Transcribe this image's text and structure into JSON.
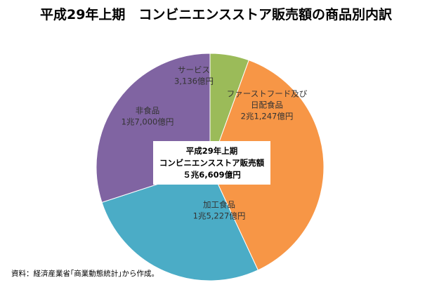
{
  "title": "平成29年上期　コンビニエンスストア販売額の商品別内訳",
  "center_box": {
    "line1": "平成29年上期",
    "line2": "コンビニエンスストア販売額",
    "line3": "５兆6,609億円"
  },
  "source_note": "資料：経済産業省｢商業動態統計｣から作成。",
  "chart_data": {
    "type": "pie",
    "unit": "億円",
    "slices": [
      {
        "label_lines": [
          "サービス",
          "3,136億円"
        ],
        "value": 3136,
        "color": "#9BBB59"
      },
      {
        "label_lines": [
          "ファーストフード及び",
          "日配食品",
          "2兆1,247億円"
        ],
        "value": 21247,
        "color": "#F79646"
      },
      {
        "label_lines": [
          "加工食品",
          "1兆5,227億円"
        ],
        "value": 15227,
        "color": "#4BACC6"
      },
      {
        "label_lines": [
          "非食品",
          "1兆7,000億円"
        ],
        "value": 17000,
        "color": "#8064A2"
      }
    ]
  }
}
